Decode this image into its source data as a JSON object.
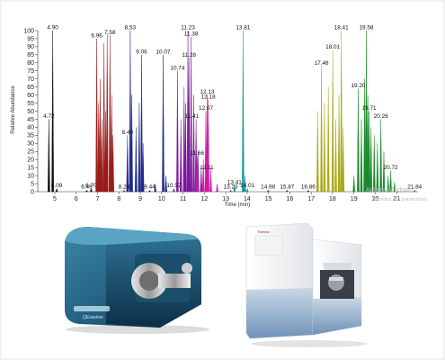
{
  "chart_data": {
    "type": "line",
    "xlabel": "Time (min)",
    "ylabel": "Relative Abundance",
    "xlim": [
      4.2,
      22.0
    ],
    "ylim": [
      0,
      100
    ],
    "xticks": [
      5,
      6,
      7,
      8,
      9,
      10,
      11,
      12,
      13,
      14,
      15,
      16,
      17,
      18,
      19,
      20,
      21
    ],
    "yticks": [
      0,
      5,
      10,
      15,
      20,
      25,
      30,
      35,
      40,
      45,
      50,
      55,
      60,
      65,
      70,
      75,
      80,
      85,
      90,
      95,
      100
    ],
    "grid": false,
    "series": [
      {
        "color": "#111111",
        "peaks": [
          [
            4.72,
            45
          ],
          [
            4.9,
            100
          ],
          [
            5.09,
            2
          ],
          [
            6.49,
            1
          ],
          [
            6.7,
            2
          ]
        ]
      },
      {
        "color": "#9b1b1b",
        "peaks": [
          [
            6.96,
            95
          ],
          [
            7.05,
            55
          ],
          [
            7.12,
            70
          ],
          [
            7.2,
            45
          ],
          [
            7.3,
            92
          ],
          [
            7.38,
            50
          ],
          [
            7.45,
            98
          ],
          [
            7.58,
            97
          ],
          [
            7.66,
            60
          ],
          [
            7.72,
            35
          ],
          [
            8.24,
            1
          ]
        ]
      },
      {
        "color": "#1f2a8c",
        "peaks": [
          [
            8.4,
            35
          ],
          [
            8.53,
            100
          ],
          [
            8.6,
            60
          ],
          [
            8.8,
            40
          ],
          [
            8.95,
            55
          ],
          [
            9.06,
            85
          ],
          [
            9.13,
            30
          ],
          [
            9.44,
            1
          ],
          [
            9.7,
            5
          ],
          [
            10.07,
            85
          ],
          [
            10.2,
            10
          ]
        ]
      },
      {
        "color": "#7a1a9a",
        "peaks": [
          [
            10.57,
            2
          ],
          [
            10.74,
            75
          ],
          [
            10.9,
            45
          ],
          [
            11.05,
            65
          ],
          [
            11.12,
            55
          ],
          [
            11.23,
            100
          ],
          [
            11.28,
            83
          ],
          [
            11.38,
            96
          ],
          [
            11.5,
            60
          ],
          [
            11.61,
            45
          ],
          [
            11.7,
            25
          ],
          [
            11.85,
            15
          ]
        ]
      },
      {
        "color": "#d21aa0",
        "peaks": [
          [
            11.66,
            22
          ],
          [
            11.95,
            20
          ],
          [
            12.07,
            50
          ],
          [
            12.13,
            60
          ],
          [
            12.18,
            57
          ],
          [
            12.3,
            15
          ],
          [
            12.6,
            5
          ],
          [
            13.23,
            1
          ]
        ]
      },
      {
        "color": "#1a9a9a",
        "peaks": [
          [
            13.41,
            4
          ],
          [
            13.81,
            100
          ],
          [
            13.9,
            10
          ],
          [
            14.01,
            2
          ]
        ]
      },
      {
        "color": "#7a0a5a",
        "peaks": [
          [
            14.98,
            1
          ],
          [
            15.87,
            1
          ],
          [
            16.86,
            1
          ]
        ]
      },
      {
        "color": "#a8a81a",
        "peaks": [
          [
            17.3,
            50
          ],
          [
            17.48,
            78
          ],
          [
            17.62,
            55
          ],
          [
            17.8,
            65
          ],
          [
            18.01,
            88
          ],
          [
            18.15,
            45
          ],
          [
            18.3,
            60
          ],
          [
            18.41,
            100
          ],
          [
            18.5,
            40
          ]
        ]
      },
      {
        "color": "#1a8a2a",
        "peaks": [
          [
            19.0,
            10
          ],
          [
            19.2,
            64
          ],
          [
            19.35,
            45
          ],
          [
            19.5,
            70
          ],
          [
            19.58,
            100
          ],
          [
            19.65,
            60
          ],
          [
            19.71,
            50
          ],
          [
            19.8,
            40
          ],
          [
            19.95,
            35
          ],
          [
            20.1,
            30
          ],
          [
            20.26,
            45
          ],
          [
            20.4,
            25
          ],
          [
            20.6,
            10
          ],
          [
            20.72,
            13
          ],
          [
            20.9,
            6
          ],
          [
            21.84,
            1
          ]
        ]
      }
    ],
    "labels": [
      {
        "text": "4.90",
        "x": 4.9,
        "y": 100
      },
      {
        "text": "4.72",
        "x": 4.72,
        "y": 45
      },
      {
        "text": "5.09",
        "x": 5.09,
        "y": 2
      },
      {
        "text": "6.49",
        "x": 6.49,
        "y": 1
      },
      {
        "text": "6.70",
        "x": 6.7,
        "y": 2
      },
      {
        "text": "6.96",
        "x": 6.96,
        "y": 95
      },
      {
        "text": "7.58",
        "x": 7.58,
        "y": 97
      },
      {
        "text": "8.24",
        "x": 8.24,
        "y": 1
      },
      {
        "text": "8.40",
        "x": 8.4,
        "y": 35
      },
      {
        "text": "8.53",
        "x": 8.53,
        "y": 100
      },
      {
        "text": "9.06",
        "x": 9.06,
        "y": 85
      },
      {
        "text": "9.44",
        "x": 9.44,
        "y": 1
      },
      {
        "text": "10.07",
        "x": 10.07,
        "y": 85
      },
      {
        "text": "10.57",
        "x": 10.57,
        "y": 2
      },
      {
        "text": "10.74",
        "x": 10.74,
        "y": 75
      },
      {
        "text": "11.23",
        "x": 11.23,
        "y": 100
      },
      {
        "text": "11.28",
        "x": 11.28,
        "y": 83
      },
      {
        "text": "11.38",
        "x": 11.38,
        "y": 96
      },
      {
        "text": "11.41",
        "x": 11.41,
        "y": 45
      },
      {
        "text": "11.66",
        "x": 11.66,
        "y": 22
      },
      {
        "text": "12.13",
        "x": 12.13,
        "y": 60
      },
      {
        "text": "12.18",
        "x": 12.18,
        "y": 57
      },
      {
        "text": "12.07",
        "x": 12.07,
        "y": 50
      },
      {
        "text": "12.11",
        "x": 12.11,
        "y": 13
      },
      {
        "text": "13.23",
        "x": 13.23,
        "y": 1
      },
      {
        "text": "13.41",
        "x": 13.41,
        "y": 4
      },
      {
        "text": "13.81",
        "x": 13.81,
        "y": 100
      },
      {
        "text": "14.01",
        "x": 14.01,
        "y": 2
      },
      {
        "text": "14.98",
        "x": 14.98,
        "y": 1
      },
      {
        "text": "15.87",
        "x": 15.87,
        "y": 1
      },
      {
        "text": "16.86",
        "x": 16.86,
        "y": 1
      },
      {
        "text": "17.48",
        "x": 17.48,
        "y": 78
      },
      {
        "text": "18.01",
        "x": 18.01,
        "y": 88
      },
      {
        "text": "18.41",
        "x": 18.41,
        "y": 100
      },
      {
        "text": "19.20",
        "x": 19.2,
        "y": 64
      },
      {
        "text": "19.58",
        "x": 19.58,
        "y": 100
      },
      {
        "text": "19.71",
        "x": 19.71,
        "y": 50
      },
      {
        "text": "20.26",
        "x": 20.26,
        "y": 45
      },
      {
        "text": "20.72",
        "x": 20.72,
        "y": 13
      },
      {
        "text": "21.84",
        "x": 21.84,
        "y": 1
      }
    ],
    "watermark": [
      "Activer Windows",
      "Accédez aux paramètres"
    ]
  },
  "photos": [
    {
      "subject": "lc-ms-instrument-blue",
      "badge_text": "QExactive"
    },
    {
      "subject": "mass-spectrometer-white",
      "brand_text": "Thermo"
    }
  ]
}
